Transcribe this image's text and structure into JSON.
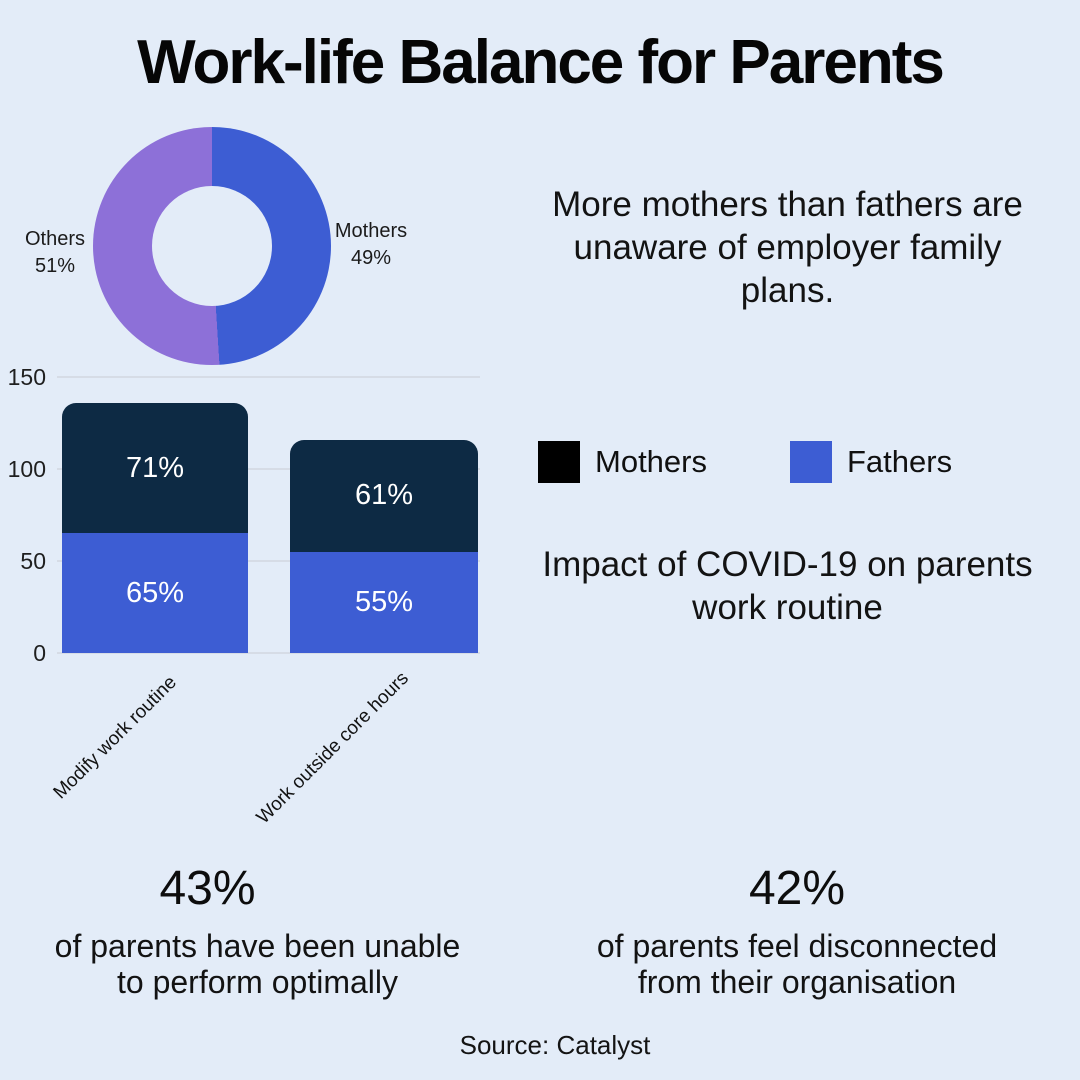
{
  "title": "Work-life Balance for Parents",
  "colors": {
    "background": "#e3ecf8",
    "fathers_blue": "#3d5dd3",
    "mothers_navy": "#0d2a44",
    "others_purple": "#8d70d8",
    "legend_mothers_black": "#000000",
    "gridline": "#d6dce6",
    "bar_value_text": "#ffffff"
  },
  "chart_data": [
    {
      "type": "pie",
      "donut": true,
      "slices": [
        {
          "label": "Mothers",
          "value": 49,
          "color": "#3d5dd3"
        },
        {
          "label": "Others",
          "value": 51,
          "color": "#8d70d8"
        }
      ],
      "value_suffix": "%",
      "legend_position": "outside-sides"
    },
    {
      "type": "bar",
      "stacked": true,
      "categories": [
        "Modify work routine",
        "Work outside core hours"
      ],
      "series": [
        {
          "name": "Fathers",
          "position": "bottom",
          "values": [
            65,
            55
          ],
          "color": "#3d5dd3"
        },
        {
          "name": "Mothers",
          "position": "top",
          "values": [
            71,
            61
          ],
          "color": "#0d2a44"
        }
      ],
      "value_suffix": "%",
      "ylim": [
        0,
        150
      ],
      "yticks": [
        0,
        50,
        100,
        150
      ],
      "grid": true,
      "legend_items": [
        {
          "label": "Mothers",
          "color": "#000000"
        },
        {
          "label": "Fathers",
          "color": "#3d5dd3"
        }
      ]
    }
  ],
  "insights": {
    "awareness_lines": [
      "More mothers than fathers are",
      "unaware of employer family",
      "plans."
    ],
    "covid_lines": [
      "Impact of COVID-19 on parents",
      "work routine"
    ]
  },
  "stats": [
    {
      "value": "43%",
      "lines": [
        "of parents have been unable",
        "to perform optimally"
      ]
    },
    {
      "value": "42%",
      "lines": [
        "of parents feel disconnected",
        "from their organisation"
      ]
    }
  ],
  "source": "Source: Catalyst"
}
